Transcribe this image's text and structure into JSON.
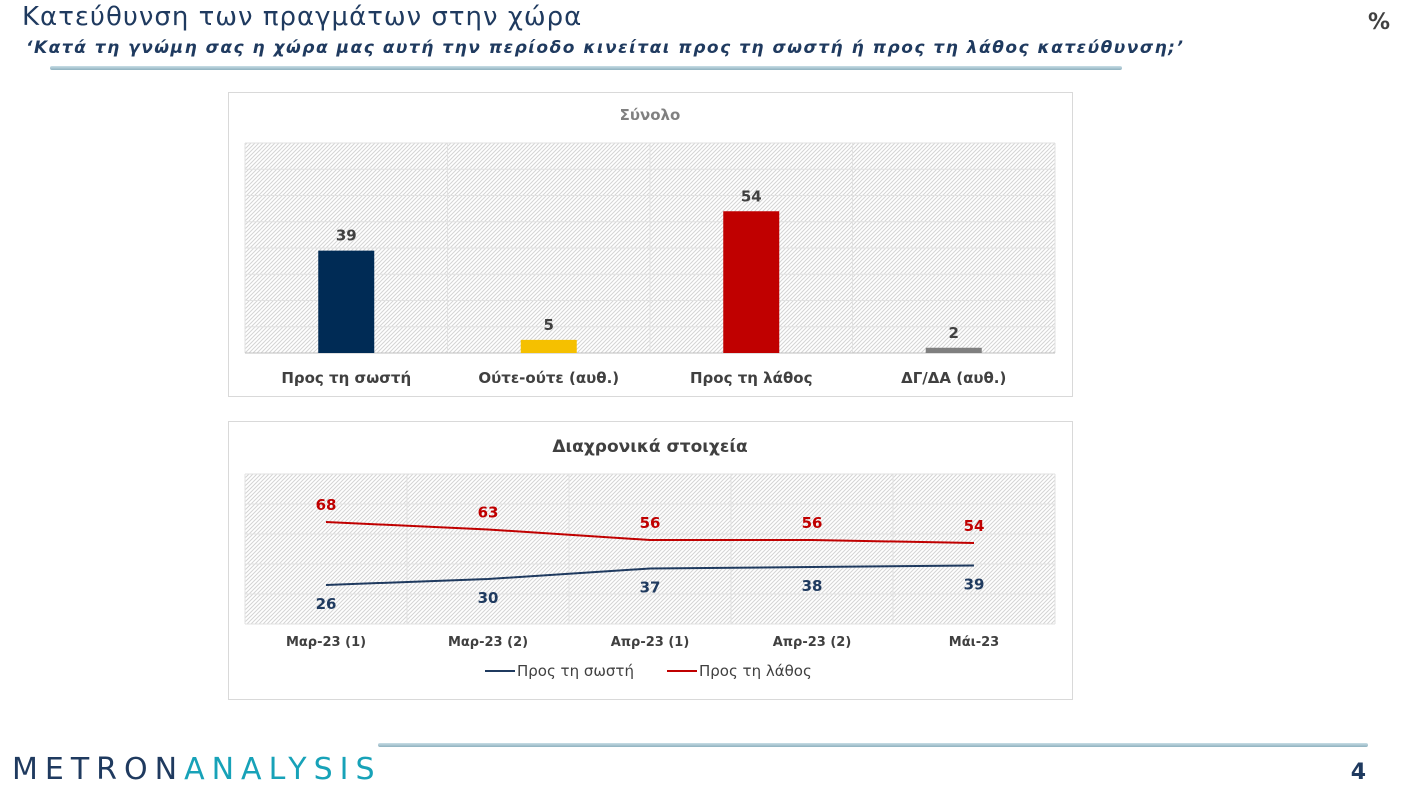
{
  "header": {
    "title": "Κατεύθυνση των πραγμάτων στην χώρα",
    "subtitle": "‘Κατά τη γνώμη σας η χώρα μας αυτή την περίοδο κινείται προς τη σωστή ή προς τη λάθος κατεύθυνση;’",
    "unit": "%"
  },
  "footer": {
    "logo_part1": "METRON",
    "logo_part2": "ANALYSIS",
    "page_number": "4"
  },
  "chart_data": [
    {
      "type": "bar",
      "title": "Σύνολο",
      "categories": [
        "Προς τη σωστή",
        "Ούτε-ούτε (αυθ.)",
        "Προς τη λάθος",
        "ΔΓ/ΔΑ (αυθ.)"
      ],
      "values": [
        39,
        5,
        54,
        2
      ],
      "colors": [
        "#002b55",
        "#f5c000",
        "#c00000",
        "#7f7f7f"
      ],
      "ylim": [
        0,
        80
      ],
      "grid": true,
      "data_labels": true
    },
    {
      "type": "line",
      "title": "Διαχρονικά στοιχεία",
      "categories": [
        "Μαρ-23 (1)",
        "Μαρ-23 (2)",
        "Απρ-23 (1)",
        "Απρ-23 (2)",
        "Μάι-23"
      ],
      "series": [
        {
          "name": "Προς τη σωστή",
          "values": [
            26,
            30,
            37,
            38,
            39
          ],
          "color": "#1f3a5f"
        },
        {
          "name": "Προς τη λάθος",
          "values": [
            68,
            63,
            56,
            56,
            54
          ],
          "color": "#c00000"
        }
      ],
      "ylim": [
        0,
        100
      ],
      "grid": true,
      "legend": "bottom",
      "data_labels": true
    }
  ]
}
